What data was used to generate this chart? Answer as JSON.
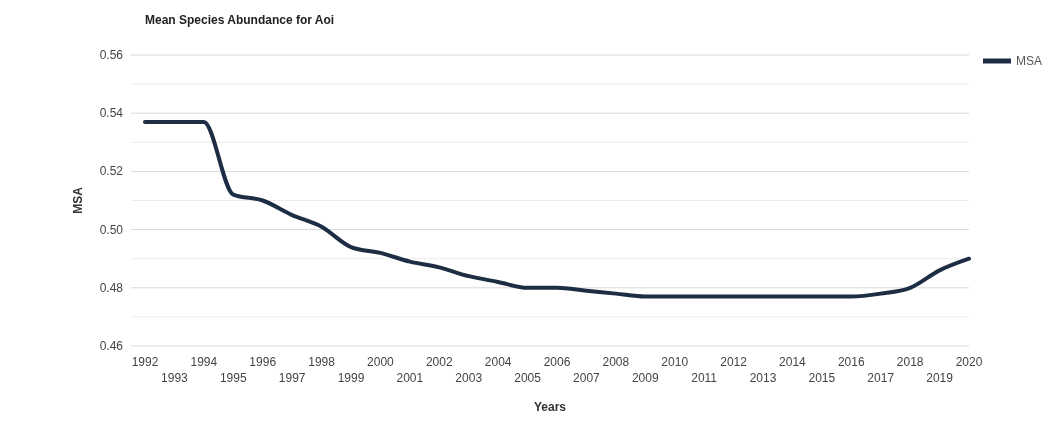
{
  "chart_data": {
    "type": "line",
    "title": "Mean Species Abundance for Aoi",
    "xlabel": "Years",
    "ylabel": "MSA",
    "categories": [
      "1992",
      "1993",
      "1994",
      "1995",
      "1996",
      "1997",
      "1998",
      "1999",
      "2000",
      "2001",
      "2002",
      "2003",
      "2004",
      "2005",
      "2006",
      "2007",
      "2008",
      "2009",
      "2010",
      "2011",
      "2012",
      "2013",
      "2014",
      "2015",
      "2016",
      "2017",
      "2018",
      "2019",
      "2020"
    ],
    "series": [
      {
        "name": "MSA",
        "color": "#1d2d44",
        "values": [
          0.537,
          0.537,
          0.537,
          0.512,
          0.51,
          0.505,
          0.501,
          0.494,
          0.492,
          0.489,
          0.487,
          0.484,
          0.482,
          0.48,
          0.48,
          0.479,
          0.478,
          0.477,
          0.477,
          0.477,
          0.477,
          0.477,
          0.477,
          0.477,
          0.477,
          0.478,
          0.48,
          0.486,
          0.49
        ]
      }
    ],
    "ylim": [
      0.46,
      0.56
    ],
    "yticks": [
      {
        "value": 0.46,
        "label": "0.46"
      },
      {
        "value": 0.47,
        "label": null
      },
      {
        "value": 0.48,
        "label": "0.48"
      },
      {
        "value": 0.49,
        "label": null
      },
      {
        "value": 0.5,
        "label": "0.50"
      },
      {
        "value": 0.51,
        "label": null
      },
      {
        "value": 0.52,
        "label": "0.52"
      },
      {
        "value": 0.53,
        "label": null
      },
      {
        "value": 0.54,
        "label": "0.54"
      },
      {
        "value": 0.55,
        "label": null
      },
      {
        "value": 0.56,
        "label": "0.56"
      }
    ],
    "grid": "y",
    "legend": "top right",
    "marker": "none",
    "line_style": "solid"
  }
}
